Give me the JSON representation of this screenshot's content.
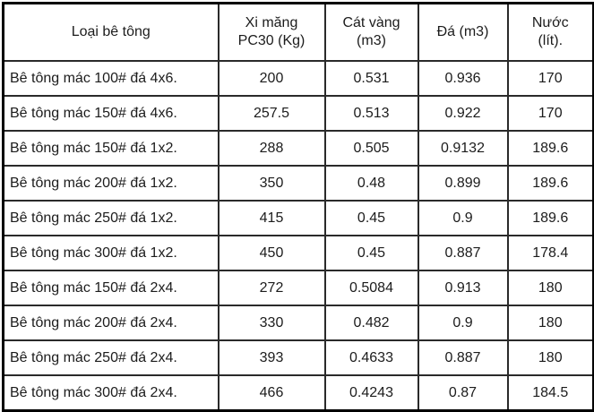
{
  "chart_data": {
    "type": "table",
    "title": "",
    "columns": [
      "Loại bê tông",
      "Xi măng\nPC30 (Kg)",
      "Cát vàng\n(m3)",
      "Đá (m3)",
      "Nước\n(lít)."
    ],
    "rows": [
      [
        "Bê tông mác 100# đá 4x6.",
        "200",
        "0.531",
        "0.936",
        "170"
      ],
      [
        "Bê tông mác 150# đá 4x6.",
        "257.5",
        "0.513",
        "0.922",
        "170"
      ],
      [
        "Bê tông mác 150# đá 1x2.",
        "288",
        "0.505",
        "0.9132",
        "189.6"
      ],
      [
        "Bê tông mác 200# đá 1x2.",
        "350",
        "0.48",
        "0.899",
        "189.6"
      ],
      [
        "Bê tông mác 250# đá 1x2.",
        "415",
        "0.45",
        "0.9",
        "189.6"
      ],
      [
        "Bê tông mác 300# đá 1x2.",
        "450",
        "0.45",
        "0.887",
        "178.4"
      ],
      [
        "Bê tông mác 150# đá 2x4.",
        "272",
        "0.5084",
        "0.913",
        "180"
      ],
      [
        "Bê tông mác 200# đá 2x4.",
        "330",
        "0.482",
        "0.9",
        "180"
      ],
      [
        "Bê tông mác 250# đá 2x4.",
        "393",
        "0.4633",
        "0.887",
        "180"
      ],
      [
        "Bê tông mác 300# đá 2x4.",
        "466",
        "0.4243",
        "0.87",
        "184.5"
      ]
    ],
    "colors": {
      "border": "#000000",
      "grid": "#2a2a2a",
      "text": "#1c1c1c",
      "background": "#ffffff"
    }
  }
}
